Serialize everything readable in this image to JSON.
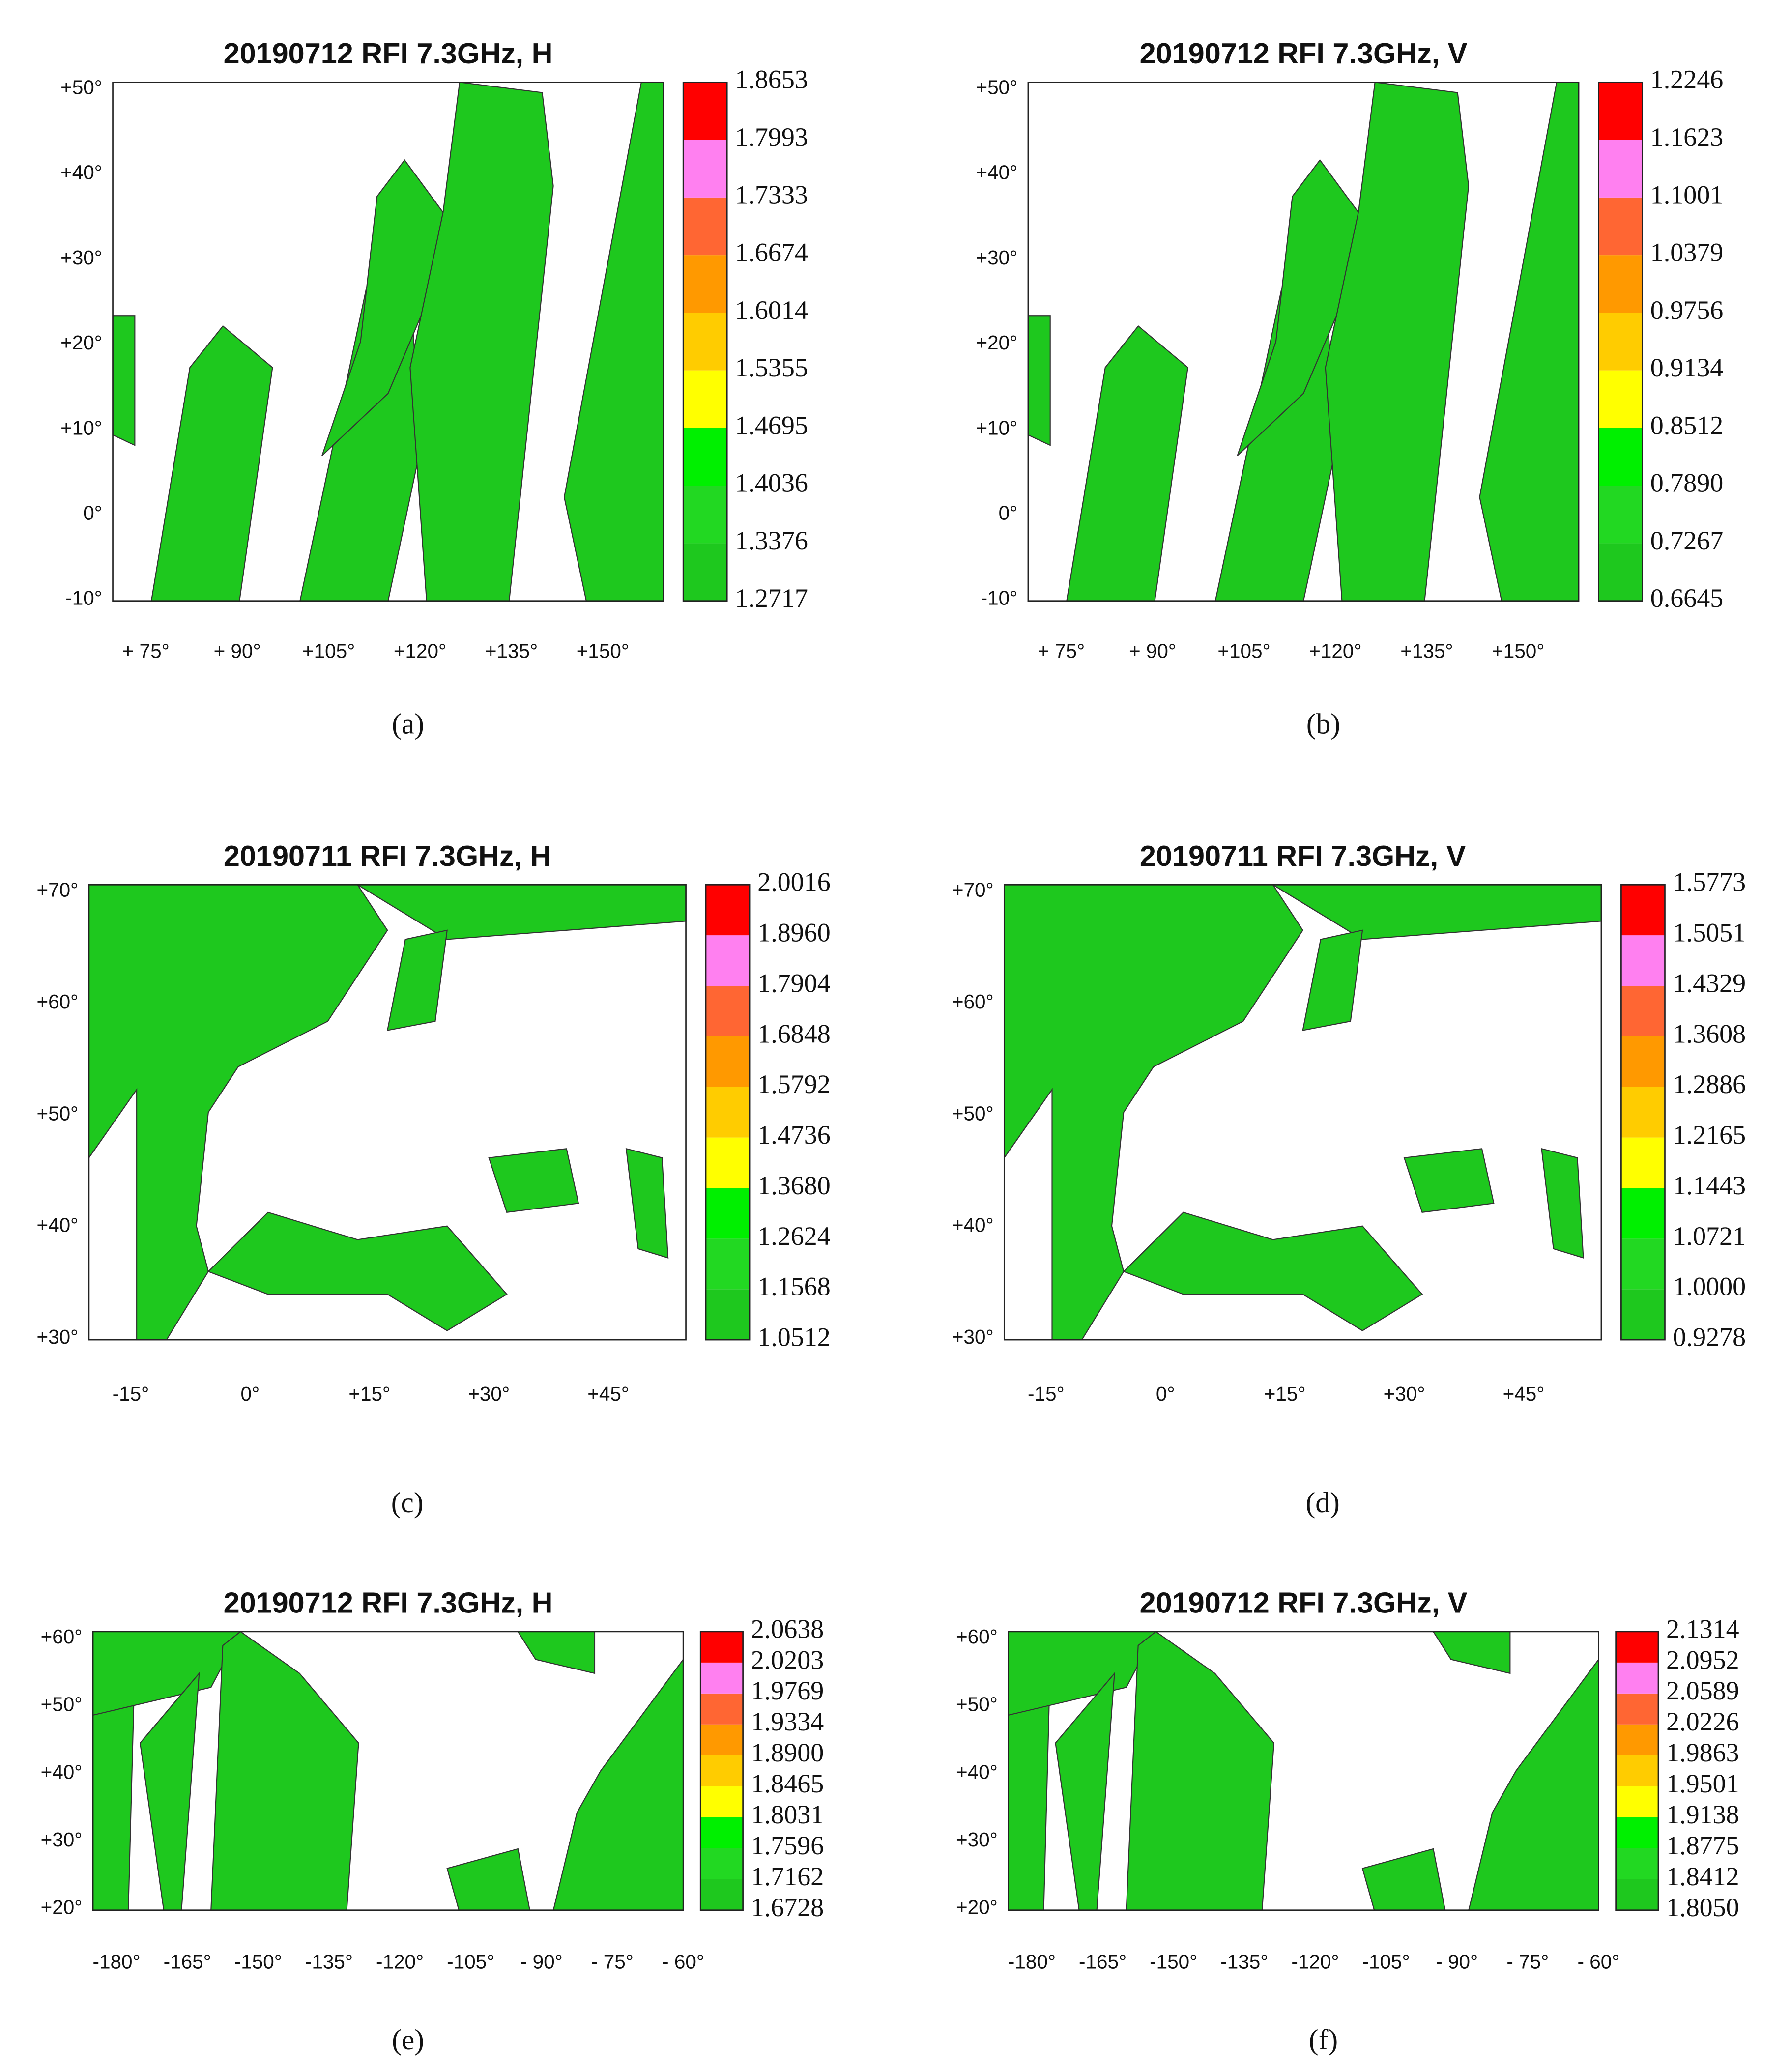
{
  "panels": [
    {
      "title": "20190712 RFI 7.3GHz, H",
      "caption": "(a)",
      "yticks": [
        "+50°",
        "+40°",
        "+30°",
        "+20°",
        "+10°",
        "0°",
        "-10°"
      ],
      "xticks": [
        "+ 75°",
        "+ 90°",
        "+105°",
        "+120°",
        "+135°",
        "+150°"
      ],
      "colorbar": [
        "1.8653",
        "1.7993",
        "1.7333",
        "1.6674",
        "1.6014",
        "1.5355",
        "1.4695",
        "1.4036",
        "1.3376",
        "1.2717"
      ]
    },
    {
      "title": "20190712 RFI 7.3GHz, V",
      "caption": "(b)",
      "yticks": [
        "+50°",
        "+40°",
        "+30°",
        "+20°",
        "+10°",
        "0°",
        "-10°"
      ],
      "xticks": [
        "+ 75°",
        "+ 90°",
        "+105°",
        "+120°",
        "+135°",
        "+150°"
      ],
      "colorbar": [
        "1.2246",
        "1.1623",
        "1.1001",
        "1.0379",
        "0.9756",
        "0.9134",
        "0.8512",
        "0.7890",
        "0.7267",
        "0.6645"
      ]
    },
    {
      "title": "20190711 RFI 7.3GHz, H",
      "caption": "(c)",
      "yticks": [
        "+70°",
        "+60°",
        "+50°",
        "+40°",
        "+30°"
      ],
      "xticks": [
        "-15°",
        "0°",
        "+15°",
        "+30°",
        "+45°"
      ],
      "colorbar": [
        "2.0016",
        "1.8960",
        "1.7904",
        "1.6848",
        "1.5792",
        "1.4736",
        "1.3680",
        "1.2624",
        "1.1568",
        "1.0512"
      ]
    },
    {
      "title": "20190711 RFI 7.3GHz, V",
      "caption": "(d)",
      "yticks": [
        "+70°",
        "+60°",
        "+50°",
        "+40°",
        "+30°"
      ],
      "xticks": [
        "-15°",
        "0°",
        "+15°",
        "+30°",
        "+45°"
      ],
      "colorbar": [
        "1.5773",
        "1.5051",
        "1.4329",
        "1.3608",
        "1.2886",
        "1.2165",
        "1.1443",
        "1.0721",
        "1.0000",
        "0.9278"
      ]
    },
    {
      "title": "20190712 RFI 7.3GHz, H",
      "caption": "(e)",
      "yticks": [
        "+60°",
        "+50°",
        "+40°",
        "+30°",
        "+20°"
      ],
      "xticks": [
        "-180°",
        "-165°",
        "-150°",
        "-135°",
        "-120°",
        "-105°",
        "- 90°",
        "- 75°",
        "- 60°"
      ],
      "colorbar": [
        "2.0638",
        "2.0203",
        "1.9769",
        "1.9334",
        "1.8900",
        "1.8465",
        "1.8031",
        "1.7596",
        "1.7162",
        "1.6728"
      ]
    },
    {
      "title": "20190712 RFI 7.3GHz, V",
      "caption": "(f)",
      "yticks": [
        "+60°",
        "+50°",
        "+40°",
        "+30°",
        "+20°"
      ],
      "xticks": [
        "-180°",
        "-165°",
        "-150°",
        "-135°",
        "-120°",
        "-105°",
        "- 90°",
        "- 75°",
        "- 60°"
      ],
      "colorbar": [
        "2.1314",
        "2.0952",
        "2.0589",
        "2.0226",
        "1.9863",
        "1.9501",
        "1.9138",
        "1.8775",
        "1.8412",
        "1.8050"
      ]
    }
  ]
}
